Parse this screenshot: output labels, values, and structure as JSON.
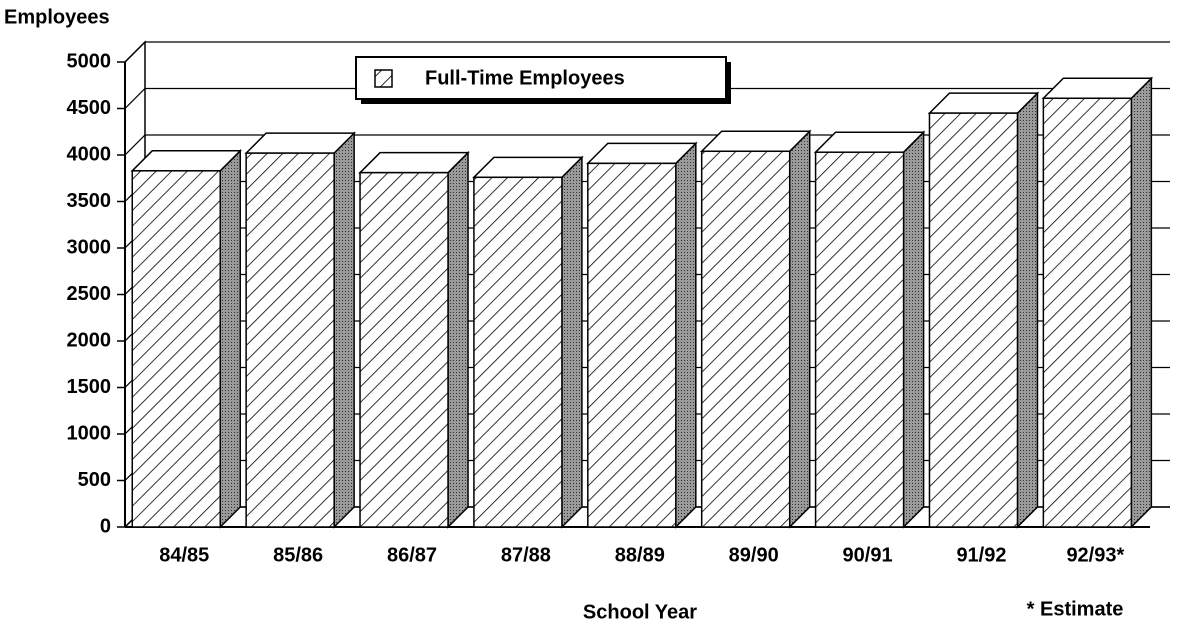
{
  "chart_data": {
    "type": "bar3d",
    "y_label": "Employees",
    "x_label": "School Year",
    "annotation": "* Estimate",
    "categories": [
      "84/85",
      "85/86",
      "86/87",
      "87/88",
      "88/89",
      "89/90",
      "90/91",
      "91/92",
      "92/93*"
    ],
    "series": [
      {
        "name": "Full-Time Employees",
        "color": "#000000",
        "values": [
          3830,
          4020,
          3810,
          3760,
          3910,
          4040,
          4030,
          4450,
          4610
        ]
      }
    ],
    "ylim": [
      0,
      5000
    ],
    "yticks": [
      0,
      500,
      1000,
      1500,
      2000,
      2500,
      3000,
      3500,
      4000,
      4500,
      5000
    ],
    "grid": true
  }
}
